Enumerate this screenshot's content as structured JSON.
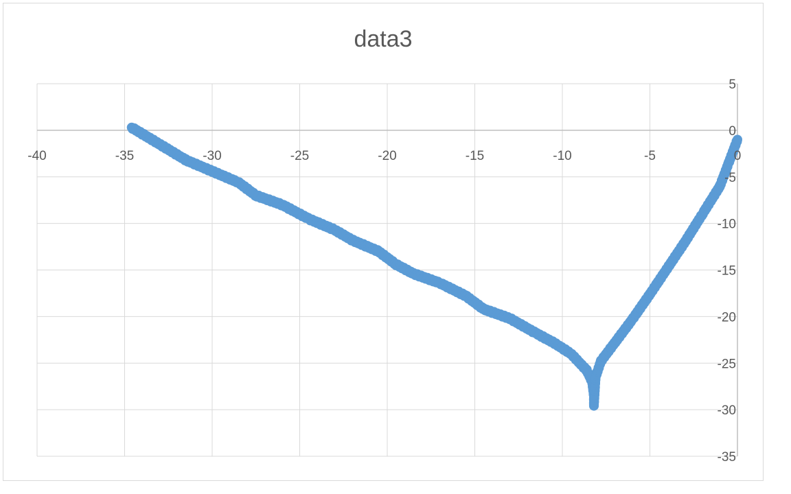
{
  "chart_data": {
    "type": "scatter",
    "title": "data3",
    "xlabel": "",
    "ylabel": "",
    "xlim": [
      -40,
      0
    ],
    "ylim": [
      -35,
      5
    ],
    "x_ticks": [
      "-40",
      "-35",
      "-30",
      "-25",
      "-20",
      "-15",
      "-10",
      "-5",
      "0"
    ],
    "y_ticks": [
      "5",
      "0",
      "-5",
      "-10",
      "-15",
      "-20",
      "-25",
      "-30",
      "-35"
    ],
    "grid": true,
    "legend": "none",
    "marker_color": "#5B9BD5",
    "series": [
      {
        "points": [
          [
            -34.6,
            0.3
          ],
          [
            -33.0,
            -1.5
          ],
          [
            -31.5,
            -3.2
          ],
          [
            -30.0,
            -4.4
          ],
          [
            -28.5,
            -5.6
          ],
          [
            -27.5,
            -7.0
          ],
          [
            -26.0,
            -8.0
          ],
          [
            -24.5,
            -9.5
          ],
          [
            -23.0,
            -10.7
          ],
          [
            -22.0,
            -11.8
          ],
          [
            -20.5,
            -13.0
          ],
          [
            -19.5,
            -14.4
          ],
          [
            -18.5,
            -15.4
          ],
          [
            -17.0,
            -16.4
          ],
          [
            -15.5,
            -17.8
          ],
          [
            -14.5,
            -19.2
          ],
          [
            -13.0,
            -20.2
          ],
          [
            -11.5,
            -21.8
          ],
          [
            -10.5,
            -22.8
          ],
          [
            -9.5,
            -24.0
          ],
          [
            -8.6,
            -25.8
          ],
          [
            -8.3,
            -27.0
          ],
          [
            -8.2,
            -28.5
          ],
          [
            -8.2,
            -29.6
          ],
          [
            -8.1,
            -26.5
          ],
          [
            -7.8,
            -24.8
          ],
          [
            -7.0,
            -22.8
          ],
          [
            -6.0,
            -20.3
          ],
          [
            -5.0,
            -17.6
          ],
          [
            -4.0,
            -14.8
          ],
          [
            -3.0,
            -12.0
          ],
          [
            -2.0,
            -9.0
          ],
          [
            -1.0,
            -6.0
          ],
          [
            -0.5,
            -3.5
          ],
          [
            0.0,
            -1.0
          ]
        ]
      }
    ]
  }
}
